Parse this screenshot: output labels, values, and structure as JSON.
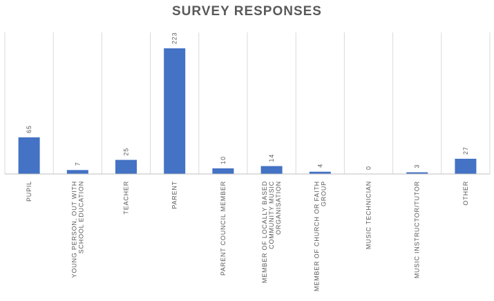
{
  "chart_data": {
    "type": "bar",
    "title": "SURVEY RESPONSES",
    "xlabel": "",
    "ylabel": "",
    "categories": [
      [
        "PUPIL"
      ],
      [
        "YOUNG PERSON, OUT WITH",
        "SCHOOL EDUCATION"
      ],
      [
        "TEACHER"
      ],
      [
        "PARENT"
      ],
      [
        "PARENT COUNCIL MEMBER"
      ],
      [
        "MEMBER OF LOCALLY BASED",
        "COMMUNITY MUSIC",
        "ORGANISATION"
      ],
      [
        "MEMBER OF CHURCH OR FAITH",
        "GROUP"
      ],
      [
        "MUSIC TECHNICIAN"
      ],
      [
        "MUSIC INSTRUCTOR/TUTOR"
      ],
      [
        "OTHER"
      ]
    ],
    "values": [
      65,
      7,
      25,
      223,
      10,
      14,
      4,
      0,
      3,
      27
    ],
    "ylim": [
      0,
      250
    ],
    "grid": false,
    "legend": "none",
    "bar_color": "#4472C4",
    "gridline_color": "#D9D9D9",
    "axis_color": "#BFBFBF"
  }
}
